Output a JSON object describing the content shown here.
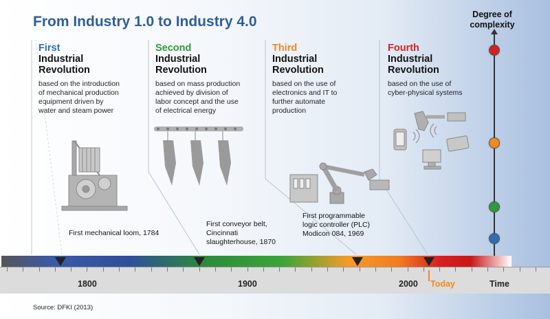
{
  "title": "From Industry 1.0 to Industry 4.0",
  "complexity_label_1": "Degree of",
  "complexity_label_2": "complexity",
  "colors": {
    "first": "#2d6db5",
    "second": "#2e9a3a",
    "third": "#f28a1e",
    "fourth": "#d32020"
  },
  "revolutions": [
    {
      "ordinal": "First",
      "line1": "Industrial",
      "line2": "Revolution",
      "description": [
        "based on the introduction",
        "of mechanical production",
        "equipment driven by",
        "water and steam power"
      ]
    },
    {
      "ordinal": "Second",
      "line1": "Industrial",
      "line2": "Revolution",
      "description": [
        "based on mass production",
        "achieved by division of",
        "labor concept and the use",
        "of electrical energy"
      ]
    },
    {
      "ordinal": "Third",
      "line1": "Industrial",
      "line2": "Revolution",
      "description": [
        "based on the use of",
        "electronics and IT to",
        "further automate",
        "production"
      ]
    },
    {
      "ordinal": "Fourth",
      "line1": "Industrial",
      "line2": "Revolution",
      "description": [
        "based on the use of",
        "cyber-physical systems"
      ]
    }
  ],
  "events": [
    {
      "lines": [
        "First mechanical loom, 1784"
      ]
    },
    {
      "lines": [
        "First conveyor belt,",
        "Cincinnati",
        "slaughterhouse, 1870"
      ]
    },
    {
      "lines": [
        "First programmable",
        "logic controller (PLC)",
        "Modicon 084, 1969"
      ]
    }
  ],
  "axis": {
    "years": [
      "1800",
      "1900",
      "2000"
    ],
    "today": "Today",
    "time": "Time"
  },
  "source": "Source: DFKI (2013)"
}
